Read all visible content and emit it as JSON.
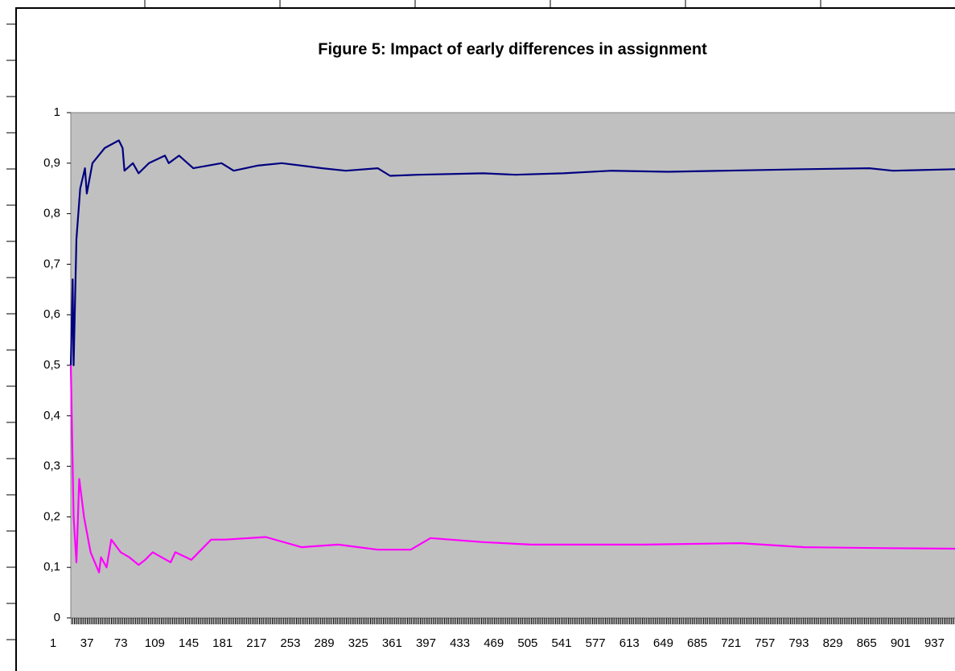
{
  "chart_data": {
    "type": "line",
    "title": "Figure 5: Impact of early differences in assignment",
    "xlim": [
      1,
      940
    ],
    "xticks": [
      1,
      37,
      73,
      109,
      145,
      181,
      217,
      253,
      289,
      325,
      361,
      397,
      433,
      469,
      505,
      541,
      577,
      613,
      649,
      685,
      721,
      757,
      793,
      829,
      865,
      901,
      937
    ],
    "ylim": [
      0,
      1
    ],
    "yticks": [
      0,
      {
        "value": 0.1,
        "label": "0,1"
      },
      {
        "value": 0.2,
        "label": "0,2"
      },
      {
        "value": 0.3,
        "label": "0,3"
      },
      {
        "value": 0.4,
        "label": "0,4"
      },
      {
        "value": 0.5,
        "label": "0,5"
      },
      {
        "value": 0.6,
        "label": "0,6"
      },
      {
        "value": 0.7,
        "label": "0,7"
      },
      {
        "value": 0.8,
        "label": "0,8"
      },
      {
        "value": 0.9,
        "label": "0,9"
      },
      1
    ],
    "plot_background": "#c0c0c0",
    "series": [
      {
        "color": "#000080",
        "x": [
          1,
          3,
          4,
          7,
          11,
          16,
          18,
          24,
          37,
          52,
          56,
          58,
          67,
          73,
          84,
          101,
          105,
          116,
          131,
          161,
          174,
          199,
          225,
          268,
          293,
          327,
          340,
          370,
          439,
          473,
          524,
          575,
          635,
          695,
          780,
          849,
          874,
          940
        ],
        "values": [
          0.5,
          0.67,
          0.5,
          0.75,
          0.85,
          0.89,
          0.84,
          0.9,
          0.93,
          0.945,
          0.93,
          0.885,
          0.9,
          0.88,
          0.9,
          0.915,
          0.9,
          0.915,
          0.89,
          0.9,
          0.885,
          0.895,
          0.9,
          0.89,
          0.885,
          0.89,
          0.875,
          0.877,
          0.88,
          0.877,
          0.88,
          0.885,
          0.883,
          0.885,
          0.888,
          0.89,
          0.885,
          0.888
        ]
      },
      {
        "color": "#ff00ff",
        "x": [
          1,
          4,
          7,
          10,
          15,
          22,
          31,
          33,
          39,
          44,
          54,
          63,
          73,
          80,
          88,
          107,
          112,
          129,
          150,
          165,
          208,
          246,
          285,
          327,
          362,
          383,
          439,
          490,
          610,
          712,
          780,
          866,
          940
        ],
        "values": [
          0.5,
          0.2,
          0.11,
          0.275,
          0.2,
          0.13,
          0.09,
          0.12,
          0.1,
          0.155,
          0.13,
          0.12,
          0.105,
          0.115,
          0.13,
          0.11,
          0.13,
          0.115,
          0.155,
          0.155,
          0.16,
          0.14,
          0.145,
          0.135,
          0.135,
          0.158,
          0.15,
          0.145,
          0.145,
          0.148,
          0.14,
          0.138,
          0.137
        ]
      }
    ]
  }
}
